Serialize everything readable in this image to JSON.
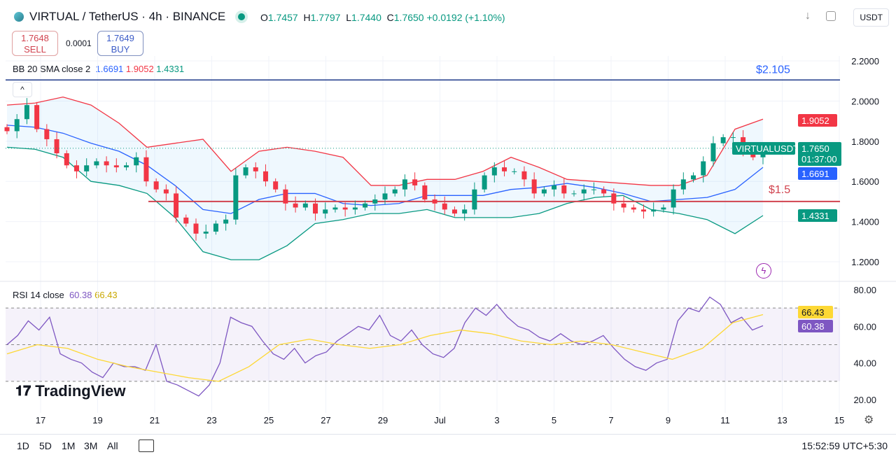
{
  "header": {
    "symbol": "VIRTUAL / TetherUS · 4h · BINANCE",
    "open": "1.7457",
    "high": "1.7797",
    "low": "1.7440",
    "close": "1.7650",
    "change": "+0.0192 (+1.10%)",
    "O": "O",
    "H": "H",
    "L": "L",
    "C": "C",
    "currency": "USDT"
  },
  "trade": {
    "sell_price": "1.7648",
    "sell_label": "SELL",
    "spread": "0.0001",
    "buy_price": "1.7649",
    "buy_label": "BUY"
  },
  "bb": {
    "label": "BB 20 SMA close 2",
    "basis": "1.6691",
    "upper": "1.9052",
    "lower": "1.4331"
  },
  "rsi": {
    "label": "RSI 14 close",
    "value": "60.38",
    "ma": "66.43"
  },
  "price_tags": {
    "symbol": "VIRTUALUSDT",
    "last": "1.7650",
    "countdown": "01:37:00",
    "upper": "1.9052",
    "basis": "1.6691",
    "lower": "1.4331"
  },
  "lines": {
    "top_label": "$2.105",
    "mid_label": "$1.5",
    "top_value": 2.105,
    "mid_value": 1.5
  },
  "logo": "TradingView",
  "timeframes": [
    "1D",
    "5D",
    "1M",
    "3M",
    "All"
  ],
  "clock": "15:52:59 UTC+5:30",
  "colors": {
    "up": "#089981",
    "down": "#f23645",
    "basis": "#2962ff",
    "upper": "#f23645",
    "lower": "#089981",
    "rsi": "#7e57c2",
    "rsima": "#fdd835"
  },
  "chart_data": {
    "type": "candlestick",
    "title": "VIRTUAL / TetherUS 4h",
    "price_ticks": [
      "2.2000",
      "2.0000",
      "1.8000",
      "1.6000",
      "1.4000",
      "1.2000"
    ],
    "price_tick_values": [
      2.2,
      2.0,
      1.8,
      1.6,
      1.4,
      1.2
    ],
    "ylim": [
      1.2,
      2.2
    ],
    "x_ticks": [
      "17",
      "19",
      "21",
      "23",
      "25",
      "27",
      "29",
      "Jul",
      "3",
      "5",
      "7",
      "9",
      "11",
      "13",
      "15"
    ],
    "closes": [
      1.85,
      1.91,
      1.98,
      1.86,
      1.81,
      1.74,
      1.68,
      1.65,
      1.68,
      1.7,
      1.68,
      1.67,
      1.68,
      1.72,
      1.6,
      1.56,
      1.54,
      1.42,
      1.39,
      1.34,
      1.35,
      1.39,
      1.41,
      1.63,
      1.67,
      1.65,
      1.6,
      1.56,
      1.49,
      1.47,
      1.49,
      1.44,
      1.46,
      1.47,
      1.46,
      1.47,
      1.49,
      1.51,
      1.54,
      1.56,
      1.61,
      1.58,
      1.51,
      1.49,
      1.46,
      1.44,
      1.46,
      1.56,
      1.63,
      1.67,
      1.65,
      1.65,
      1.61,
      1.54,
      1.56,
      1.58,
      1.54,
      1.54,
      1.56,
      1.56,
      1.54,
      1.49,
      1.47,
      1.46,
      1.45,
      1.46,
      1.47,
      1.56,
      1.61,
      1.63,
      1.7,
      1.79,
      1.82,
      1.82,
      1.75,
      1.72,
      1.765
    ],
    "bb_upper": [
      1.98,
      1.99,
      2.02,
      1.98,
      1.89,
      1.77,
      1.79,
      1.81,
      1.65,
      1.75,
      1.77,
      1.75,
      1.72,
      1.58,
      1.58,
      1.61,
      1.61,
      1.65,
      1.72,
      1.67,
      1.61,
      1.6,
      1.59,
      1.58,
      1.58,
      1.63,
      1.86,
      1.91
    ],
    "bb_basis": [
      1.88,
      1.87,
      1.84,
      1.79,
      1.75,
      1.68,
      1.58,
      1.46,
      1.44,
      1.51,
      1.54,
      1.54,
      1.49,
      1.48,
      1.49,
      1.53,
      1.53,
      1.53,
      1.56,
      1.57,
      1.59,
      1.57,
      1.54,
      1.5,
      1.51,
      1.52,
      1.56,
      1.67
    ],
    "bb_lower": [
      1.77,
      1.76,
      1.72,
      1.6,
      1.58,
      1.54,
      1.42,
      1.25,
      1.21,
      1.21,
      1.28,
      1.39,
      1.41,
      1.44,
      1.44,
      1.46,
      1.42,
      1.42,
      1.42,
      1.44,
      1.49,
      1.52,
      1.53,
      1.46,
      1.44,
      1.41,
      1.34,
      1.43
    ],
    "rsi_ticks": [
      "80.00",
      "60.00",
      "40.00",
      "20.00"
    ],
    "rsi_tick_values": [
      80,
      60,
      40,
      20
    ],
    "rsi_bands": [
      70,
      50,
      30
    ],
    "rsi_values": [
      50,
      55,
      63,
      58,
      65,
      45,
      42,
      40,
      35,
      32,
      40,
      38,
      38,
      36,
      50,
      30,
      28,
      25,
      22,
      28,
      40,
      65,
      62,
      60,
      52,
      45,
      42,
      48,
      40,
      44,
      46,
      52,
      56,
      60,
      58,
      66,
      55,
      52,
      58,
      50,
      45,
      43,
      48,
      62,
      70,
      66,
      72,
      65,
      60,
      58,
      54,
      52,
      56,
      52,
      50,
      52,
      55,
      48,
      42,
      38,
      36,
      40,
      42,
      63,
      70,
      68,
      76,
      72,
      62,
      65,
      58,
      60.38
    ],
    "rsi_ma": [
      45,
      50,
      48,
      42,
      38,
      35,
      32,
      30,
      38,
      50,
      53,
      50,
      48,
      50,
      55,
      58,
      56,
      52,
      50,
      52,
      50,
      46,
      42,
      48,
      62,
      66.43
    ]
  }
}
